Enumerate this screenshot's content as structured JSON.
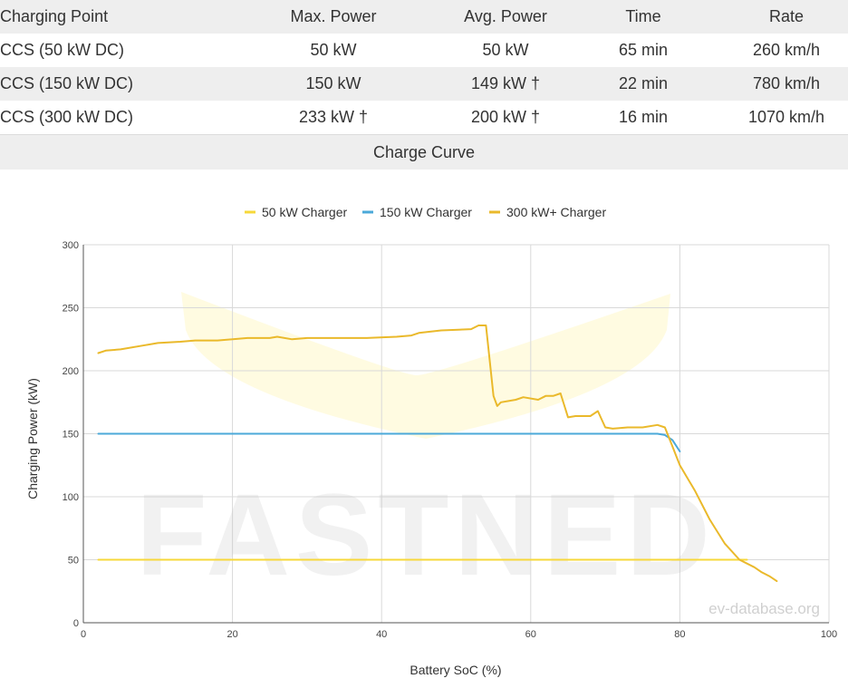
{
  "table": {
    "headers": [
      "Charging Point",
      "Max. Power",
      "Avg. Power",
      "Time",
      "Rate"
    ],
    "rows": [
      [
        "CCS (50 kW DC)",
        "50 kW",
        "50 kW",
        "65 min",
        "260 km/h"
      ],
      [
        "CCS (150 kW DC)",
        "150 kW",
        "149 kW †",
        "22 min",
        "780 km/h"
      ],
      [
        "CCS (300 kW DC)",
        "233 kW †",
        "200 kW †",
        "16 min",
        "1070 km/h"
      ]
    ]
  },
  "section_title": "Charge Curve",
  "watermark": {
    "brand": "FASTNED",
    "site": "ev-database.org"
  },
  "colors": {
    "s50": "#f7d83a",
    "s150": "#4ba9d9",
    "s300": "#eab92b",
    "grid": "#d9d9d9",
    "axis": "#555555"
  },
  "chart_data": {
    "type": "line",
    "xlabel": "Battery SoC (%)",
    "ylabel": "Charging Power (kW)",
    "xlim": [
      0,
      100
    ],
    "ylim": [
      0,
      300
    ],
    "xticks": [
      0,
      20,
      40,
      60,
      80,
      100
    ],
    "yticks": [
      0,
      50,
      100,
      150,
      200,
      250,
      300
    ],
    "grid": true,
    "legend_position": "top-center",
    "series": [
      {
        "name": "50 kW Charger",
        "color": "#f7d83a",
        "x": [
          2,
          89
        ],
        "y": [
          50,
          50
        ]
      },
      {
        "name": "150 kW Charger",
        "color": "#4ba9d9",
        "x": [
          2,
          77,
          78,
          79,
          80
        ],
        "y": [
          150,
          150,
          149,
          145,
          136
        ]
      },
      {
        "name": "300 kW+ Charger",
        "color": "#eab92b",
        "x": [
          2,
          3,
          5,
          8,
          10,
          13,
          15,
          18,
          22,
          25,
          26,
          28,
          30,
          34,
          38,
          42,
          44,
          45,
          48,
          52,
          53,
          54,
          55,
          55.5,
          56,
          58,
          59,
          61,
          62,
          63,
          64,
          65,
          66,
          68,
          69,
          70,
          71,
          73,
          75,
          77,
          78,
          79,
          80,
          82,
          84,
          86,
          88,
          90,
          91,
          92,
          93
        ],
        "y": [
          214,
          216,
          217,
          220,
          222,
          223,
          224,
          224,
          226,
          226,
          227,
          225,
          226,
          226,
          226,
          227,
          228,
          230,
          232,
          233,
          236,
          236,
          180,
          172,
          175,
          177,
          179,
          177,
          180,
          180,
          182,
          163,
          164,
          164,
          168,
          155,
          154,
          155,
          155,
          157,
          155,
          140,
          125,
          105,
          82,
          63,
          50,
          44,
          40,
          37,
          33
        ]
      }
    ]
  }
}
